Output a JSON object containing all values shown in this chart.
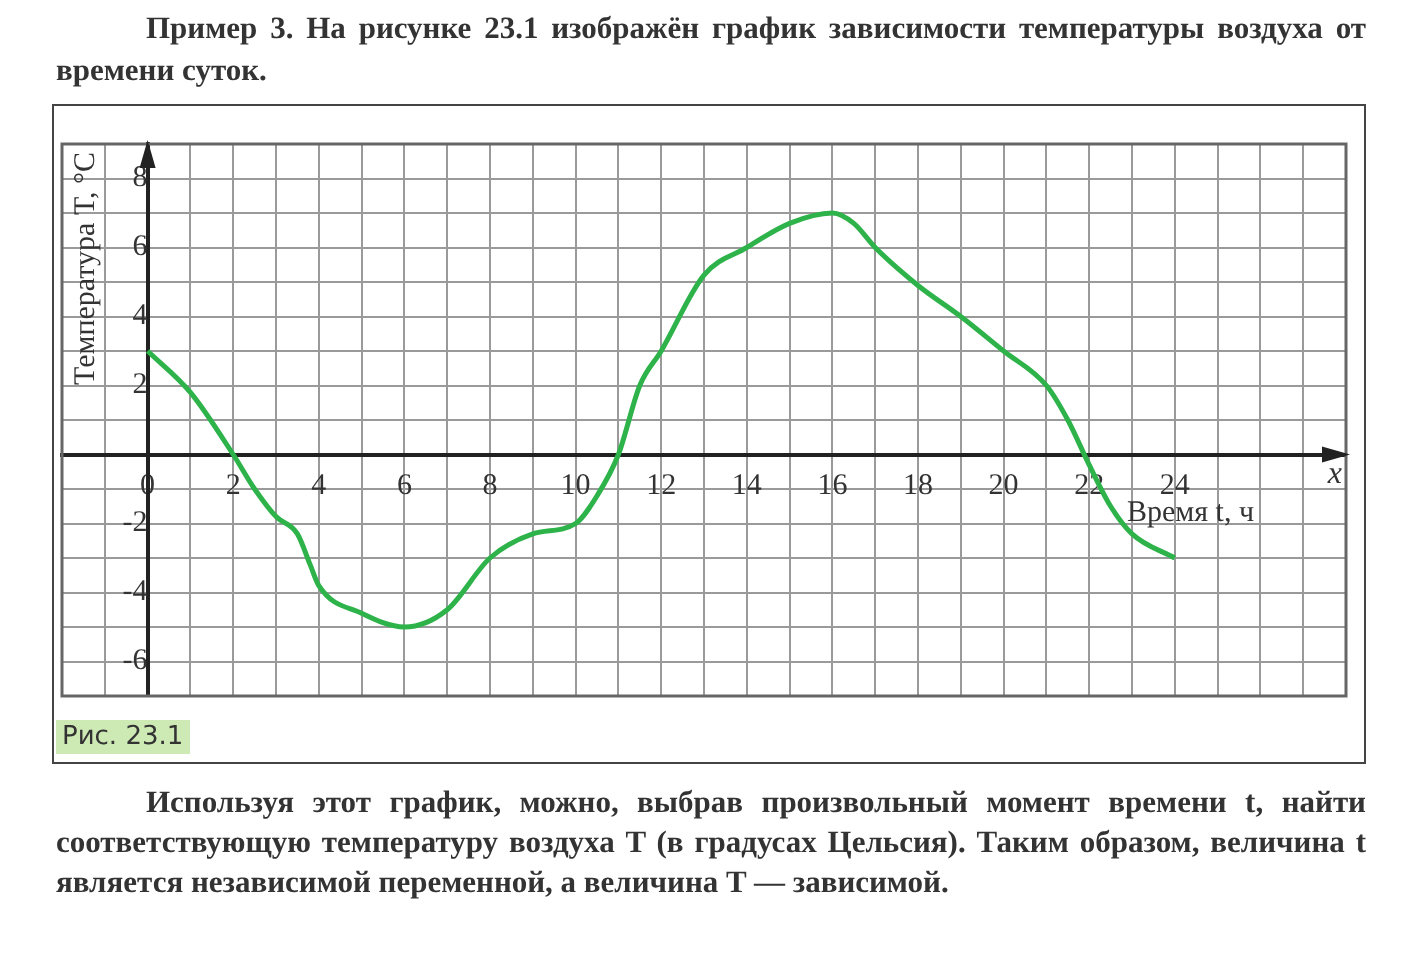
{
  "chart_data": {
    "type": "line",
    "title": "Пример 3. На рисунке 23.1 изображён график зависимости температуры воздуха от времени суток.",
    "xlabel": "Время t, ч",
    "ylabel": "Температура T, °C",
    "annotations": [
      "x",
      "Рис. 23.1",
      "Используя этот график, можно, выбрав произвольный момент времени t, найти соответствующую температуру воздуха T (в градусах Цельсия). Таким образом, величина t является независимой переменной, а величина T — зависимой."
    ],
    "series": [
      {
        "color": "#2db34a",
        "x": [
          0,
          1,
          2,
          2.5,
          3,
          3.5,
          3.8,
          4,
          5,
          6,
          7,
          8,
          9,
          10,
          10.5,
          11,
          11.5,
          12,
          13,
          14,
          15,
          16,
          16.5,
          17,
          18,
          19,
          20,
          21,
          21.5,
          22,
          22.5,
          23,
          24
        ],
        "values": [
          3,
          1.8,
          0,
          -1,
          -1.8,
          -2.3,
          -3.2,
          -3.8,
          -4.6,
          -5,
          -4.5,
          -3,
          -2.3,
          -2,
          -1.2,
          0,
          2,
          3,
          5.2,
          6,
          6.7,
          7,
          6.7,
          6,
          4.9,
          4,
          3,
          2,
          1,
          -0.3,
          -1.5,
          -2.3,
          -3
        ]
      }
    ],
    "xlim": [
      -2,
      28
    ],
    "ylim": [
      -7,
      9
    ],
    "xticks": [
      {
        "value": -2,
        "label": null
      },
      {
        "value": -1,
        "label": null
      },
      0,
      {
        "value": 1,
        "label": null
      },
      2,
      {
        "value": 3,
        "label": null
      },
      4,
      {
        "value": 5,
        "label": null
      },
      6,
      {
        "value": 7,
        "label": null
      },
      8,
      {
        "value": 9,
        "label": null
      },
      10,
      {
        "value": 11,
        "label": null
      },
      12,
      {
        "value": 13,
        "label": null
      },
      14,
      {
        "value": 15,
        "label": null
      },
      16,
      {
        "value": 17,
        "label": null
      },
      18,
      {
        "value": 19,
        "label": null
      },
      20,
      {
        "value": 21,
        "label": null
      },
      22,
      {
        "value": 23,
        "label": null
      },
      24,
      {
        "value": 25,
        "label": null
      },
      {
        "value": 26,
        "label": null
      },
      {
        "value": 27,
        "label": null
      },
      {
        "value": 28,
        "label": null
      }
    ],
    "yticks": [
      {
        "value": -7,
        "label": null
      },
      -6,
      {
        "value": -5,
        "label": null
      },
      -4,
      {
        "value": -3,
        "label": null
      },
      -2,
      {
        "value": -1,
        "label": null
      },
      {
        "value": 0,
        "label": null
      },
      {
        "value": 1,
        "label": null
      },
      2,
      {
        "value": 3,
        "label": null
      },
      4,
      {
        "value": 5,
        "label": null
      },
      6,
      {
        "value": 7,
        "label": null
      },
      8,
      {
        "value": 9,
        "label": null
      }
    ],
    "grid": true,
    "legend": false,
    "marker": "none",
    "line_style": "solid"
  }
}
